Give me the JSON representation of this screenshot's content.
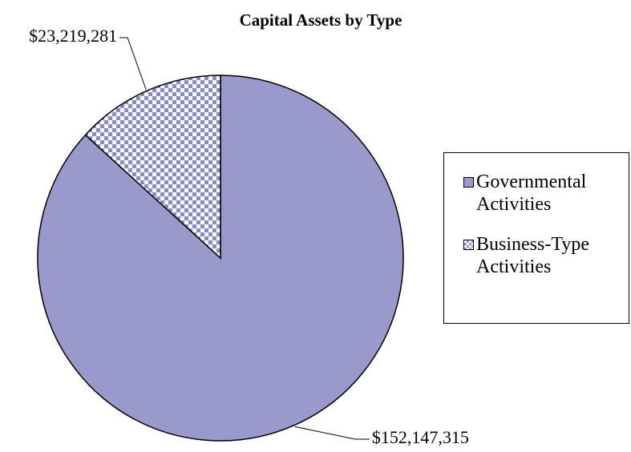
{
  "chart_data": {
    "type": "pie",
    "title": "Capital Assets by Type",
    "categories": [
      "Governmental Activities",
      "Business-Type Activities"
    ],
    "values": [
      152147315,
      23219281
    ],
    "value_labels": [
      "$152,147,315",
      "$23,219,281"
    ],
    "colors": [
      "#9999cc",
      "#9999cc"
    ],
    "patterns": [
      "solid",
      "checkered"
    ],
    "legend": "right"
  }
}
